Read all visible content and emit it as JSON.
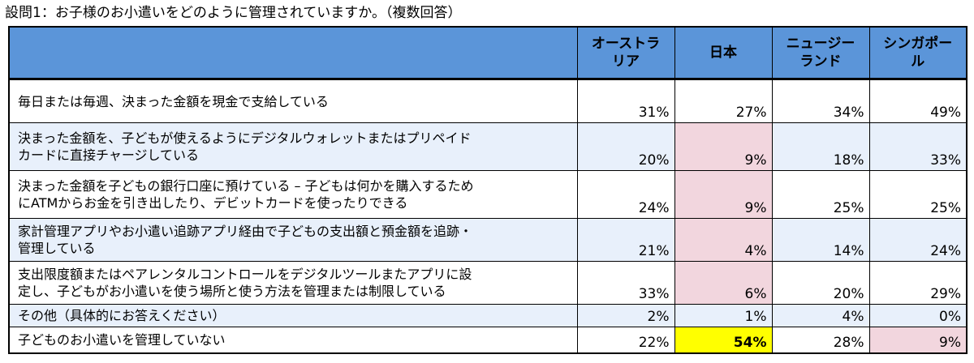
{
  "caption": "設問1：お子様のお小遣いをどのように管理されていますか。（複数回答）",
  "colors": {
    "header_bg": "#5b95d9",
    "row_alt_bg": "#e8f0fb",
    "highlight_low": "#f2d6de",
    "highlight_high": "#ffff00"
  },
  "chart_data": {
    "type": "table",
    "title": "設問1：お子様のお小遣いをどのように管理されていますか。（複数回答）",
    "columns": [
      "オーストラリア",
      "日本",
      "ニュージーランド",
      "シンガポール"
    ],
    "rows": [
      {
        "label": "毎日または毎週、決まった金額を現金で支給している",
        "values": [
          "31%",
          "27%",
          "34%",
          "49%"
        ],
        "highlight": [
          "",
          "",
          "",
          ""
        ]
      },
      {
        "label": "決まった金額を、子どもが使えるようにデジタルウォレットまたはプリペイドカードに直接チャージしている",
        "values": [
          "20%",
          "9%",
          "18%",
          "33%"
        ],
        "highlight": [
          "",
          "pink",
          "",
          ""
        ]
      },
      {
        "label": "決まった金額を子どもの銀行口座に預けている – 子どもは何かを購入するためにATMからお金を引き出したり、デビットカードを使ったりできる",
        "values": [
          "24%",
          "9%",
          "25%",
          "25%"
        ],
        "highlight": [
          "",
          "pink",
          "",
          ""
        ]
      },
      {
        "label": "家計管理アプリやお小遣い追跡アプリ経由で子どもの支出額と預金額を追跡・管理している",
        "values": [
          "21%",
          "4%",
          "14%",
          "24%"
        ],
        "highlight": [
          "",
          "pink",
          "",
          ""
        ]
      },
      {
        "label": "支出限度額またはペアレンタルコントロールをデジタルツールまたアプリに設定し、子どもがお小遣いを使う場所と使う方法を管理または制限している",
        "values": [
          "33%",
          "6%",
          "20%",
          "29%"
        ],
        "highlight": [
          "",
          "pink",
          "",
          ""
        ]
      },
      {
        "label": "その他（具体的にお答えください）",
        "values": [
          "2%",
          "1%",
          "4%",
          "0%"
        ],
        "highlight": [
          "",
          "",
          "",
          ""
        ]
      },
      {
        "label": "子どものお小遣いを管理していない",
        "values": [
          "22%",
          "54%",
          "28%",
          "9%"
        ],
        "highlight": [
          "",
          "yellow",
          "",
          "pink"
        ]
      }
    ]
  },
  "header_lines": [
    [
      "オーストラ",
      "リア"
    ],
    [
      "日本",
      ""
    ],
    [
      "ニュージー",
      "ランド"
    ],
    [
      "シンガポー",
      "ル"
    ]
  ],
  "label_lines": [
    [
      "毎日または毎週、決まった金額を現金で支給している",
      ""
    ],
    [
      "決まった金額を、子どもが使えるようにデジタルウォレットまたはプリペイド",
      "カードに直接チャージしている"
    ],
    [
      "決まった金額を子どもの銀行口座に預けている – 子どもは何かを購入するため",
      "にATMからお金を引き出したり、デビットカードを使ったりできる"
    ],
    [
      "家計管理アプリやお小遣い追跡アプリ経由で子どもの支出額と預金額を追跡・",
      "管理している"
    ],
    [
      "支出限度額またはペアレンタルコントロールをデジタルツールまたアプリに設",
      "定し、子どもがお小遣いを使う場所と使う方法を管理または制限している"
    ],
    [
      "その他（具体的にお答えください）",
      ""
    ],
    [
      "子どものお小遣いを管理していない",
      ""
    ]
  ]
}
